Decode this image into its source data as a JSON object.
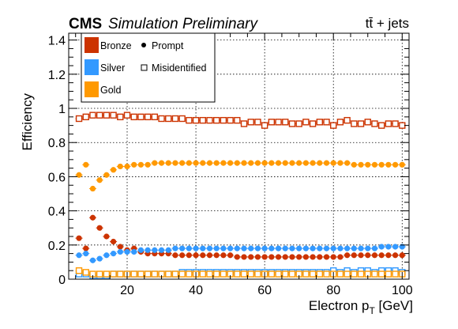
{
  "chart_data": {
    "type": "scatter",
    "title": "CMS",
    "subtitle": "Simulation Preliminary",
    "process_label": "tt̄ + jets",
    "xlabel": "Electron p",
    "xlabel_sub": "T",
    "xlabel_unit": " [GeV]",
    "ylabel": "Efficiency",
    "xlim": [
      3,
      102
    ],
    "ylim": [
      0,
      1.44
    ],
    "xticks": [
      20,
      40,
      60,
      80,
      100
    ],
    "yticks": [
      0,
      0.2,
      0.4,
      0.6,
      0.8,
      1.0,
      1.2,
      1.4
    ],
    "ytick_labels": [
      "0",
      "0.2",
      "0.4",
      "0.6",
      "0.8",
      "1",
      "1.2",
      "1.4"
    ],
    "grid": true,
    "legend": {
      "position": "top-left",
      "entries": [
        {
          "label": "Bronze",
          "color": "#cc3300"
        },
        {
          "label": "Silver",
          "color": "#3399ff"
        },
        {
          "label": "Gold",
          "color": "#ff9900"
        }
      ],
      "marker_prompt": "Prompt",
      "marker_misid": "Misidentified"
    },
    "x": [
      6,
      8,
      10,
      12,
      14,
      16,
      18,
      20,
      22,
      24,
      26,
      28,
      30,
      32,
      34,
      36,
      38,
      40,
      42,
      44,
      46,
      48,
      50,
      52,
      54,
      56,
      58,
      60,
      62,
      64,
      66,
      68,
      70,
      72,
      74,
      76,
      78,
      80,
      82,
      84,
      86,
      88,
      90,
      92,
      94,
      96,
      98,
      100
    ],
    "series": [
      {
        "name": "Bronze",
        "kind": "Prompt",
        "color": "#cc3300",
        "filled": true,
        "values": [
          0.24,
          0.18,
          0.36,
          0.3,
          0.25,
          0.22,
          0.19,
          0.17,
          0.18,
          0.16,
          0.15,
          0.15,
          0.15,
          0.15,
          0.14,
          0.14,
          0.14,
          0.14,
          0.14,
          0.14,
          0.14,
          0.14,
          0.14,
          0.13,
          0.13,
          0.13,
          0.13,
          0.13,
          0.13,
          0.13,
          0.13,
          0.13,
          0.13,
          0.13,
          0.13,
          0.13,
          0.13,
          0.13,
          0.13,
          0.14,
          0.14,
          0.14,
          0.14,
          0.14,
          0.14,
          0.14,
          0.14,
          0.14
        ]
      },
      {
        "name": "Silver",
        "kind": "Prompt",
        "color": "#3399ff",
        "filled": true,
        "values": [
          0.14,
          0.15,
          0.11,
          0.12,
          0.14,
          0.15,
          0.16,
          0.16,
          0.16,
          0.17,
          0.17,
          0.17,
          0.17,
          0.17,
          0.18,
          0.18,
          0.18,
          0.18,
          0.18,
          0.18,
          0.18,
          0.18,
          0.18,
          0.18,
          0.18,
          0.18,
          0.18,
          0.18,
          0.18,
          0.18,
          0.18,
          0.18,
          0.18,
          0.18,
          0.18,
          0.18,
          0.18,
          0.18,
          0.18,
          0.18,
          0.18,
          0.18,
          0.18,
          0.18,
          0.19,
          0.19,
          0.19,
          0.19
        ]
      },
      {
        "name": "Gold",
        "kind": "Prompt",
        "color": "#ff9900",
        "filled": true,
        "values": [
          0.61,
          0.67,
          0.53,
          0.58,
          0.61,
          0.64,
          0.66,
          0.66,
          0.67,
          0.67,
          0.67,
          0.68,
          0.68,
          0.68,
          0.68,
          0.68,
          0.68,
          0.68,
          0.68,
          0.68,
          0.68,
          0.68,
          0.68,
          0.68,
          0.68,
          0.68,
          0.68,
          0.68,
          0.68,
          0.68,
          0.68,
          0.68,
          0.68,
          0.68,
          0.68,
          0.68,
          0.68,
          0.68,
          0.68,
          0.68,
          0.67,
          0.67,
          0.67,
          0.67,
          0.67,
          0.67,
          0.67,
          0.67
        ]
      },
      {
        "name": "Bronze",
        "kind": "Misidentified",
        "color": "#cc3300",
        "filled": false,
        "values": [
          0.94,
          0.95,
          0.96,
          0.96,
          0.96,
          0.96,
          0.95,
          0.96,
          0.95,
          0.95,
          0.95,
          0.95,
          0.94,
          0.94,
          0.94,
          0.94,
          0.93,
          0.93,
          0.93,
          0.93,
          0.93,
          0.93,
          0.93,
          0.93,
          0.91,
          0.92,
          0.92,
          0.9,
          0.92,
          0.92,
          0.92,
          0.91,
          0.91,
          0.92,
          0.91,
          0.92,
          0.92,
          0.9,
          0.92,
          0.93,
          0.91,
          0.91,
          0.92,
          0.91,
          0.9,
          0.91,
          0.91,
          0.9
        ]
      },
      {
        "name": "Silver",
        "kind": "Misidentified",
        "color": "#3399ff",
        "filled": false,
        "values": [
          0.03,
          0.03,
          0.02,
          0.02,
          0.02,
          0.03,
          0.03,
          0.03,
          0.03,
          0.03,
          0.03,
          0.03,
          0.03,
          0.03,
          0.03,
          0.04,
          0.04,
          0.04,
          0.04,
          0.04,
          0.04,
          0.04,
          0.04,
          0.04,
          0.04,
          0.04,
          0.04,
          0.04,
          0.04,
          0.04,
          0.04,
          0.04,
          0.04,
          0.04,
          0.04,
          0.04,
          0.04,
          0.05,
          0.04,
          0.05,
          0.04,
          0.05,
          0.05,
          0.04,
          0.05,
          0.05,
          0.05,
          0.04
        ]
      },
      {
        "name": "Gold",
        "kind": "Misidentified",
        "color": "#ff9900",
        "filled": false,
        "values": [
          0.05,
          0.04,
          0.03,
          0.03,
          0.03,
          0.03,
          0.03,
          0.03,
          0.03,
          0.03,
          0.03,
          0.03,
          0.03,
          0.03,
          0.03,
          0.03,
          0.03,
          0.03,
          0.03,
          0.03,
          0.03,
          0.03,
          0.03,
          0.03,
          0.03,
          0.03,
          0.03,
          0.03,
          0.03,
          0.03,
          0.03,
          0.03,
          0.03,
          0.03,
          0.03,
          0.03,
          0.03,
          0.03,
          0.03,
          0.03,
          0.03,
          0.03,
          0.03,
          0.03,
          0.03,
          0.03,
          0.03,
          0.03
        ]
      }
    ]
  }
}
